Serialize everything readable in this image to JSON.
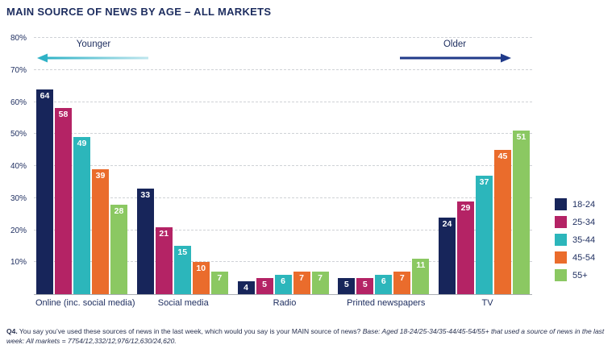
{
  "title": "MAIN SOURCE OF NEWS BY AGE – ALL MARKETS",
  "annotations": {
    "younger": "Younger",
    "older": "Older"
  },
  "accent_colors": {
    "younger_arrow": "#2fb2c6",
    "older_arrow": "#203a8a",
    "navy_text": "#1d2d5f"
  },
  "chart_data": {
    "type": "bar",
    "title": "MAIN SOURCE OF NEWS BY AGE – ALL MARKETS",
    "categories": [
      "Online (inc. social media)",
      "Social media",
      "Radio",
      "Printed newspapers",
      "TV"
    ],
    "series": [
      {
        "name": "18-24",
        "color": "#17255a",
        "values": [
          64,
          33,
          4,
          5,
          24
        ]
      },
      {
        "name": "25-34",
        "color": "#b42365",
        "values": [
          58,
          21,
          5,
          5,
          29
        ]
      },
      {
        "name": "35-44",
        "color": "#2cb6bb",
        "values": [
          49,
          15,
          6,
          6,
          37
        ]
      },
      {
        "name": "45-54",
        "color": "#ea6c2c",
        "values": [
          39,
          10,
          7,
          7,
          45
        ]
      },
      {
        "name": "55+",
        "color": "#8bc862",
        "values": [
          28,
          7,
          7,
          11,
          51
        ]
      }
    ],
    "xlabel": "",
    "ylabel": "",
    "ylim": [
      0,
      80
    ],
    "ytick_step": 10,
    "ytick_labels": [
      "10%",
      "20%",
      "30%",
      "40%",
      "50%",
      "60%",
      "70%",
      "80%"
    ],
    "grid": "dashed horizontal",
    "legend_position": "right",
    "bar_value_labels": "white, inside top of each bar"
  },
  "footnote": {
    "q_label": "Q4.",
    "question": " You say you’ve used these sources of news in the last week, which would you say is your MAIN source of news? ",
    "base": "Base: Aged 18-24/25-34/35-44/45-54/55+ that used a source of news in the last week: All markets = 7754/12,332/12,976/12,630/24,620."
  }
}
